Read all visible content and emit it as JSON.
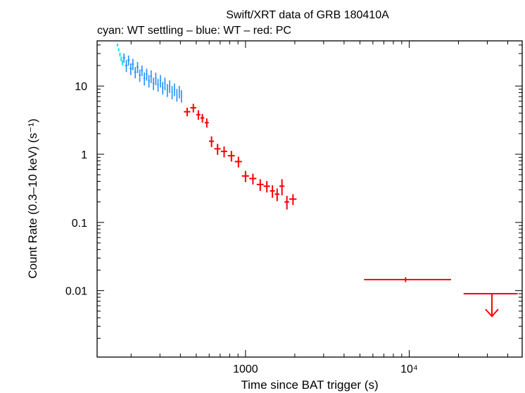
{
  "chart_data": {
    "type": "scatter",
    "title": "Swift/XRT data of GRB 180410A",
    "subtitle": "cyan: WT settling – blue: WT – red: PC",
    "xlabel": "Time since BAT trigger (s)",
    "ylabel": "Count Rate (0.3–10 keV) (s⁻¹)",
    "xscale": "log",
    "yscale": "log",
    "xlim": [
      124,
      49000
    ],
    "ylim": [
      0.00106,
      46
    ],
    "x_ticks": [
      {
        "value": 1000,
        "label": "1000"
      },
      {
        "value": 10000,
        "label": "10⁴"
      }
    ],
    "y_ticks": [
      {
        "value": 10,
        "label": "10"
      },
      {
        "value": 1,
        "label": "1"
      },
      {
        "value": 0.1,
        "label": "0.1"
      },
      {
        "value": 0.01,
        "label": "0.01"
      }
    ],
    "series": [
      {
        "name": "WT settling",
        "color": "#00e5e5",
        "points": [
          {
            "x": 165,
            "y": 40,
            "xerr": [
              2,
              2
            ],
            "yerr": [
              2,
              2
            ]
          },
          {
            "x": 168,
            "y": 34,
            "xerr": [
              2,
              2
            ],
            "yerr": [
              2,
              2
            ]
          },
          {
            "x": 171,
            "y": 29,
            "xerr": [
              2,
              2
            ],
            "yerr": [
              2,
              2
            ]
          },
          {
            "x": 174,
            "y": 25,
            "xerr": [
              2,
              2
            ],
            "yerr": [
              2,
              2
            ]
          },
          {
            "x": 177,
            "y": 22,
            "xerr": [
              2,
              2
            ],
            "yerr": [
              2,
              2
            ]
          }
        ]
      },
      {
        "name": "WT",
        "color": "#1e90ff",
        "points": [
          {
            "x": 181,
            "y": 26,
            "xerr": [
              3,
              3
            ],
            "yerr": [
              4,
              4
            ]
          },
          {
            "x": 187,
            "y": 20,
            "xerr": [
              3,
              3
            ],
            "yerr": [
              4,
              4
            ]
          },
          {
            "x": 193,
            "y": 24,
            "xerr": [
              3,
              3
            ],
            "yerr": [
              4,
              4
            ]
          },
          {
            "x": 199,
            "y": 18,
            "xerr": [
              3,
              3
            ],
            "yerr": [
              3.5,
              3.5
            ]
          },
          {
            "x": 205,
            "y": 21,
            "xerr": [
              3,
              3
            ],
            "yerr": [
              4,
              4
            ]
          },
          {
            "x": 212,
            "y": 16,
            "xerr": [
              3,
              3
            ],
            "yerr": [
              3,
              3
            ]
          },
          {
            "x": 219,
            "y": 19,
            "xerr": [
              3,
              3
            ],
            "yerr": [
              3.5,
              3.5
            ]
          },
          {
            "x": 226,
            "y": 14.5,
            "xerr": [
              3,
              3
            ],
            "yerr": [
              3,
              3
            ]
          },
          {
            "x": 233,
            "y": 17,
            "xerr": [
              3,
              3
            ],
            "yerr": [
              3,
              3
            ]
          },
          {
            "x": 241,
            "y": 13,
            "xerr": [
              3,
              3
            ],
            "yerr": [
              2.8,
              2.8
            ]
          },
          {
            "x": 249,
            "y": 15,
            "xerr": [
              3,
              3
            ],
            "yerr": [
              3,
              3
            ]
          },
          {
            "x": 257,
            "y": 12,
            "xerr": [
              3,
              3
            ],
            "yerr": [
              2.5,
              2.5
            ]
          },
          {
            "x": 265,
            "y": 14,
            "xerr": [
              3,
              3
            ],
            "yerr": [
              3,
              3
            ]
          },
          {
            "x": 274,
            "y": 11,
            "xerr": [
              3,
              3
            ],
            "yerr": [
              2.3,
              2.3
            ]
          },
          {
            "x": 283,
            "y": 13,
            "xerr": [
              3,
              3
            ],
            "yerr": [
              2.7,
              2.7
            ]
          },
          {
            "x": 292,
            "y": 10.5,
            "xerr": [
              3,
              3
            ],
            "yerr": [
              2.2,
              2.2
            ]
          },
          {
            "x": 302,
            "y": 12,
            "xerr": [
              3,
              3
            ],
            "yerr": [
              2.5,
              2.5
            ]
          },
          {
            "x": 312,
            "y": 9.5,
            "xerr": [
              3,
              3
            ],
            "yerr": [
              2,
              2
            ]
          },
          {
            "x": 322,
            "y": 11,
            "xerr": [
              3,
              3
            ],
            "yerr": [
              2.3,
              2.3
            ]
          },
          {
            "x": 333,
            "y": 8.8,
            "xerr": [
              3,
              3
            ],
            "yerr": [
              1.9,
              1.9
            ]
          },
          {
            "x": 344,
            "y": 10,
            "xerr": [
              3,
              3
            ],
            "yerr": [
              2.1,
              2.1
            ]
          },
          {
            "x": 356,
            "y": 8.2,
            "xerr": [
              3,
              3
            ],
            "yerr": [
              1.8,
              1.8
            ]
          },
          {
            "x": 368,
            "y": 9,
            "xerr": [
              3,
              3
            ],
            "yerr": [
              1.9,
              1.9
            ]
          },
          {
            "x": 381,
            "y": 7.5,
            "xerr": [
              3,
              3
            ],
            "yerr": [
              1.6,
              1.6
            ]
          },
          {
            "x": 394,
            "y": 8.3,
            "xerr": [
              3,
              3
            ],
            "yerr": [
              1.7,
              1.7
            ]
          },
          {
            "x": 406,
            "y": 7.2,
            "xerr": [
              3,
              3
            ],
            "yerr": [
              1.5,
              1.5
            ]
          }
        ]
      },
      {
        "name": "PC",
        "color": "#ff0000",
        "points": [
          {
            "x": 440,
            "y": 4.2,
            "xerr": [
              20,
              20
            ],
            "yerr": [
              0.6,
              0.6
            ]
          },
          {
            "x": 480,
            "y": 4.8,
            "xerr": [
              20,
              20
            ],
            "yerr": [
              0.7,
              0.7
            ]
          },
          {
            "x": 515,
            "y": 3.8,
            "xerr": [
              15,
              15
            ],
            "yerr": [
              0.6,
              0.6
            ]
          },
          {
            "x": 545,
            "y": 3.4,
            "xerr": [
              15,
              15
            ],
            "yerr": [
              0.5,
              0.5
            ]
          },
          {
            "x": 580,
            "y": 2.9,
            "xerr": [
              17,
              17
            ],
            "yerr": [
              0.45,
              0.45
            ]
          },
          {
            "x": 620,
            "y": 1.55,
            "xerr": [
              22,
              22
            ],
            "yerr": [
              0.28,
              0.28
            ]
          },
          {
            "x": 675,
            "y": 1.2,
            "xerr": [
              30,
              30
            ],
            "yerr": [
              0.22,
              0.22
            ]
          },
          {
            "x": 740,
            "y": 1.1,
            "xerr": [
              33,
              33
            ],
            "yerr": [
              0.2,
              0.2
            ]
          },
          {
            "x": 820,
            "y": 0.95,
            "xerr": [
              40,
              40
            ],
            "yerr": [
              0.17,
              0.17
            ]
          },
          {
            "x": 905,
            "y": 0.78,
            "xerr": [
              45,
              45
            ],
            "yerr": [
              0.14,
              0.14
            ]
          },
          {
            "x": 1000,
            "y": 0.48,
            "xerr": [
              50,
              50
            ],
            "yerr": [
              0.09,
              0.09
            ]
          },
          {
            "x": 1110,
            "y": 0.44,
            "xerr": [
              55,
              55
            ],
            "yerr": [
              0.08,
              0.08
            ]
          },
          {
            "x": 1230,
            "y": 0.36,
            "xerr": [
              60,
              60
            ],
            "yerr": [
              0.07,
              0.07
            ]
          },
          {
            "x": 1350,
            "y": 0.34,
            "xerr": [
              60,
              60
            ],
            "yerr": [
              0.065,
              0.065
            ]
          },
          {
            "x": 1460,
            "y": 0.29,
            "xerr": [
              50,
              50
            ],
            "yerr": [
              0.06,
              0.06
            ]
          },
          {
            "x": 1560,
            "y": 0.26,
            "xerr": [
              50,
              50
            ],
            "yerr": [
              0.055,
              0.055
            ]
          },
          {
            "x": 1670,
            "y": 0.34,
            "xerr": [
              60,
              60
            ],
            "yerr": [
              0.09,
              0.09
            ]
          },
          {
            "x": 1790,
            "y": 0.2,
            "xerr": [
              60,
              60
            ],
            "yerr": [
              0.045,
              0.045
            ]
          },
          {
            "x": 1950,
            "y": 0.22,
            "xerr": [
              100,
              100
            ],
            "yerr": [
              0.04,
              0.04
            ]
          },
          {
            "x": 9500,
            "y": 0.0145,
            "xerr": [
              4200,
              8500
            ],
            "yerr": [
              0.0012,
              0.0012
            ]
          }
        ]
      },
      {
        "name": "PC upper limit",
        "color": "#ff0000",
        "upper_limit": true,
        "points": [
          {
            "x": 32000,
            "y": 0.009,
            "xerr": [
              10500,
              14000
            ],
            "arrow_to": 0.0042
          }
        ]
      }
    ]
  }
}
